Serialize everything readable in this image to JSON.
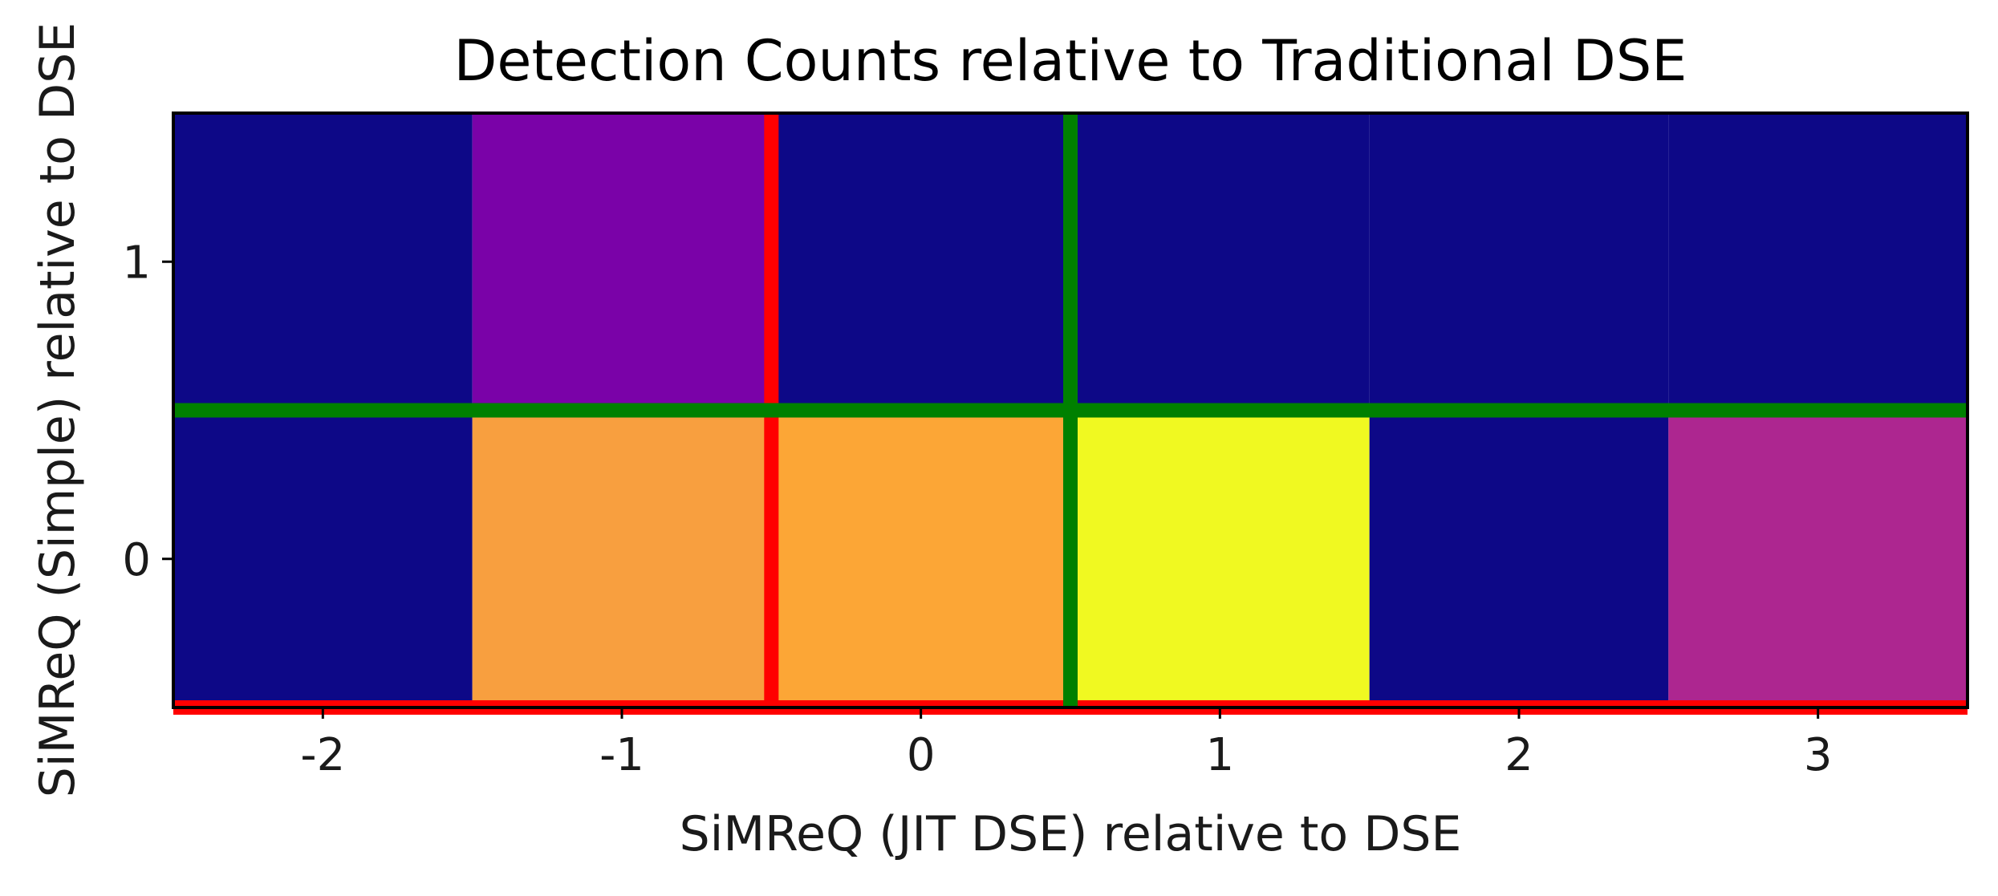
{
  "chart_data": {
    "type": "heatmap",
    "title": "Detection Counts relative to Traditional DSE",
    "xlabel": "SiMReQ (JIT DSE) relative to DSE",
    "ylabel": "SiMReQ (Simple) relative to DSE",
    "x_categories": [
      -2,
      -1,
      0,
      1,
      2,
      3
    ],
    "y_categories": [
      0,
      1
    ],
    "x_tick_labels": [
      "-2",
      "-1",
      "0",
      "1",
      "2",
      "3"
    ],
    "y_tick_labels": [
      "0",
      "1"
    ],
    "xlim": [
      -2.5,
      3.5
    ],
    "ylim": [
      -0.5,
      1.5
    ],
    "colormap": "plasma",
    "cell_colors": [
      [
        "#0d0887",
        "#f89f3f",
        "#fca636",
        "#f0f921",
        "#0d0887",
        "#ad2690"
      ],
      [
        "#0d0887",
        "#7a02a8",
        "#0d0887",
        "#0d0887",
        "#0d0887",
        "#0d0887"
      ]
    ],
    "reference_lines": [
      {
        "orientation": "vertical",
        "x": -0.5,
        "color": "#ff0000"
      },
      {
        "orientation": "horizontal",
        "y": -0.5,
        "color": "#ff0000"
      },
      {
        "orientation": "vertical",
        "x": 0.5,
        "color": "#008000"
      },
      {
        "orientation": "horizontal",
        "y": 0.5,
        "color": "#008000"
      }
    ]
  }
}
